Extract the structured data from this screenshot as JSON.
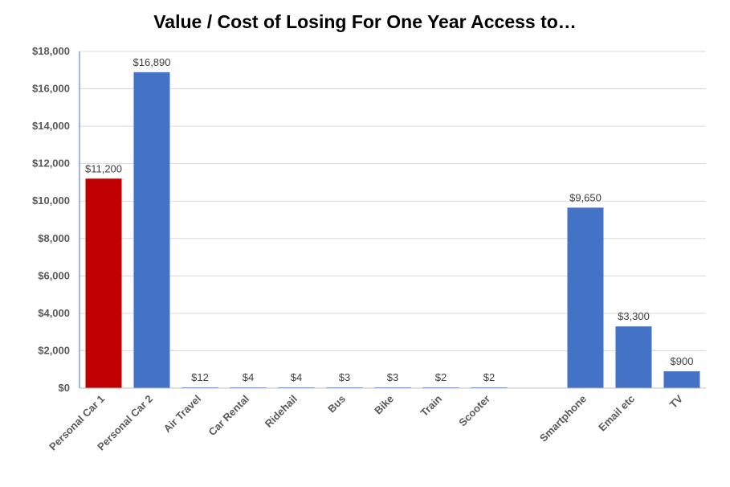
{
  "chart_data": {
    "type": "bar",
    "title": "Value / Cost of Losing For One Year Access to…",
    "xlabel": "",
    "ylabel": "",
    "ylim": [
      0,
      18000
    ],
    "yticks": [
      "$0",
      "$2,000",
      "$4,000",
      "$6,000",
      "$8,000",
      "$10,000",
      "$12,000",
      "$14,000",
      "$16,000",
      "$18,000"
    ],
    "grid": true,
    "categories": [
      "Personal Car 1",
      "Personal Car 2",
      "Air Travel",
      "Car Rental",
      "Ridehail",
      "Bus",
      "Bike",
      "Train",
      "Scooter",
      "",
      "Smartphone",
      "Email etc",
      "TV"
    ],
    "values": [
      11200,
      16890,
      12,
      4,
      4,
      3,
      3,
      2,
      2,
      null,
      9650,
      3300,
      900
    ],
    "data_labels": [
      "$11,200",
      "$16,890",
      "$12",
      "$4",
      "$4",
      "$3",
      "$3",
      "$2",
      "$2",
      "",
      "$9,650",
      "$3,300",
      "$900"
    ],
    "colors": [
      "#c00000",
      "#4472c4",
      "#4472c4",
      "#4472c4",
      "#4472c4",
      "#4472c4",
      "#4472c4",
      "#4472c4",
      "#4472c4",
      "#4472c4",
      "#4472c4",
      "#4472c4",
      "#4472c4"
    ]
  }
}
